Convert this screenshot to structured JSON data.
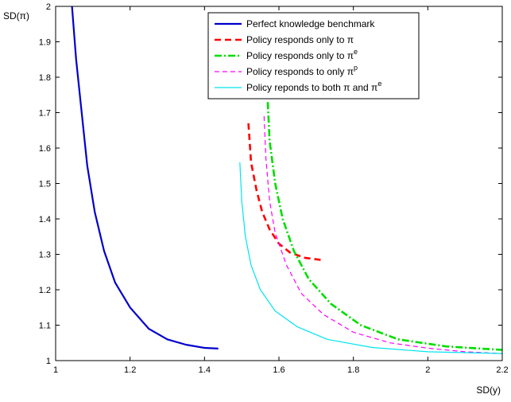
{
  "chart_data": {
    "type": "line",
    "xlabel": "SD(y)",
    "ylabel": "SD(π)",
    "xlim": [
      1,
      2.2
    ],
    "ylim": [
      1,
      2
    ],
    "x_ticks": [
      1,
      1.2,
      1.4,
      1.6,
      1.8,
      2,
      2.2
    ],
    "x_tick_labels": [
      "1",
      "1.2",
      "1.4",
      "1.6",
      "1.8",
      "2",
      "2.2"
    ],
    "y_ticks": [
      1,
      1.1,
      1.2,
      1.3,
      1.4,
      1.5,
      1.6,
      1.7,
      1.8,
      1.9,
      2
    ],
    "y_tick_labels": [
      "1",
      "1.1",
      "1.2",
      "1.3",
      "1.4",
      "1.5",
      "1.6",
      "1.7",
      "1.8",
      "1.9",
      "2"
    ],
    "grid": false,
    "legend_position": "top-right",
    "series": [
      {
        "name": "Perfect knowledge benchmark",
        "legend_main": "Perfect knowledge benchmark",
        "legend_sup": "",
        "legend_tail": "",
        "color": "#0000cc",
        "dash": "solid",
        "width": 2.2,
        "x": [
          1.044,
          1.055,
          1.07,
          1.085,
          1.105,
          1.13,
          1.16,
          1.2,
          1.25,
          1.3,
          1.35,
          1.4,
          1.437
        ],
        "y": [
          2.0,
          1.85,
          1.7,
          1.55,
          1.42,
          1.31,
          1.22,
          1.15,
          1.09,
          1.06,
          1.045,
          1.036,
          1.034
        ]
      },
      {
        "name": "Policy responds only to π",
        "legend_main": "Policy responds only to π",
        "legend_sup": "",
        "legend_tail": "",
        "color": "#ff0000",
        "dash": "8,5",
        "width": 2.6,
        "x": [
          1.518,
          1.525,
          1.54,
          1.555,
          1.575,
          1.6,
          1.63,
          1.67,
          1.715
        ],
        "y": [
          1.67,
          1.56,
          1.48,
          1.42,
          1.37,
          1.33,
          1.305,
          1.29,
          1.284
        ]
      },
      {
        "name": "Policy responds only to πe",
        "legend_main": "Policy responds only to π",
        "legend_sup": "e",
        "legend_tail": "",
        "color": "#00dd00",
        "dash": "9,3,2,3",
        "width": 2.6,
        "x": [
          1.57,
          1.575,
          1.59,
          1.61,
          1.64,
          1.68,
          1.74,
          1.82,
          1.92,
          2.05,
          2.2
        ],
        "y": [
          1.73,
          1.62,
          1.5,
          1.4,
          1.31,
          1.23,
          1.16,
          1.1,
          1.06,
          1.04,
          1.03
        ]
      },
      {
        "name": "Policy responds to only πp",
        "legend_main": "Policy responds to only π",
        "legend_sup": "p",
        "legend_tail": "",
        "color": "#ff00ff",
        "dash": "6,4",
        "width": 1.2,
        "x": [
          1.56,
          1.565,
          1.575,
          1.59,
          1.62,
          1.66,
          1.72,
          1.8,
          1.9,
          2.0,
          2.1,
          2.2
        ],
        "y": [
          1.69,
          1.57,
          1.45,
          1.36,
          1.27,
          1.19,
          1.13,
          1.08,
          1.05,
          1.035,
          1.025,
          1.02
        ]
      },
      {
        "name": "Policy reponds to both π and πe",
        "legend_main": "Policy reponds to both π and π",
        "legend_sup": "e",
        "legend_tail": "",
        "color": "#00e5ee",
        "dash": "solid",
        "width": 1.2,
        "x": [
          1.495,
          1.5,
          1.51,
          1.525,
          1.55,
          1.59,
          1.65,
          1.73,
          1.85,
          2.0,
          2.2
        ],
        "y": [
          1.56,
          1.45,
          1.35,
          1.27,
          1.2,
          1.14,
          1.095,
          1.06,
          1.037,
          1.025,
          1.02
        ]
      }
    ]
  }
}
